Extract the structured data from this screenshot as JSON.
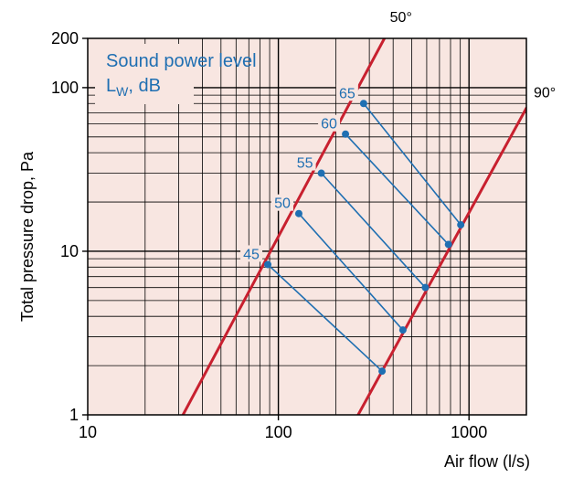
{
  "chart_data": {
    "type": "line",
    "xlabel": "Air flow (l/s)",
    "ylabel": "Total pressure drop, Pa",
    "xscale": "log",
    "yscale": "log",
    "xlim": [
      10,
      2000
    ],
    "ylim": [
      1,
      200
    ],
    "x_tick_labels": [
      "10",
      "100",
      "1000"
    ],
    "y_tick_labels": [
      "1",
      "10",
      "100",
      "200"
    ],
    "grid": true,
    "annotation": {
      "line1": "Sound power level",
      "line2_main": "L",
      "line2_sub": "W",
      "line2_rest": ", dB"
    },
    "series": [
      {
        "name": "50°",
        "color": "#c8202f",
        "points": [
          [
            31.6,
            1
          ],
          [
            360,
            200
          ]
        ]
      },
      {
        "name": "90°",
        "color": "#c8202f",
        "points": [
          [
            262,
            1
          ],
          [
            2000,
            75
          ]
        ]
      }
    ],
    "sound_levels": [
      {
        "label": "45",
        "from": [
          88,
          8.3
        ],
        "to": [
          350,
          1.85
        ]
      },
      {
        "label": "50",
        "from": [
          128,
          17
        ],
        "to": [
          450,
          3.3
        ]
      },
      {
        "label": "55",
        "from": [
          168,
          30
        ],
        "to": [
          590,
          6
        ]
      },
      {
        "label": "60",
        "from": [
          225,
          52
        ],
        "to": [
          780,
          11
        ]
      },
      {
        "label": "65",
        "from": [
          280,
          80
        ],
        "to": [
          905,
          14.5
        ]
      }
    ],
    "colors": {
      "plot_background": "#f8e6e1",
      "curves": "#c8202f",
      "sound_lines": "#1f6fb2",
      "grid": "#000000"
    }
  }
}
